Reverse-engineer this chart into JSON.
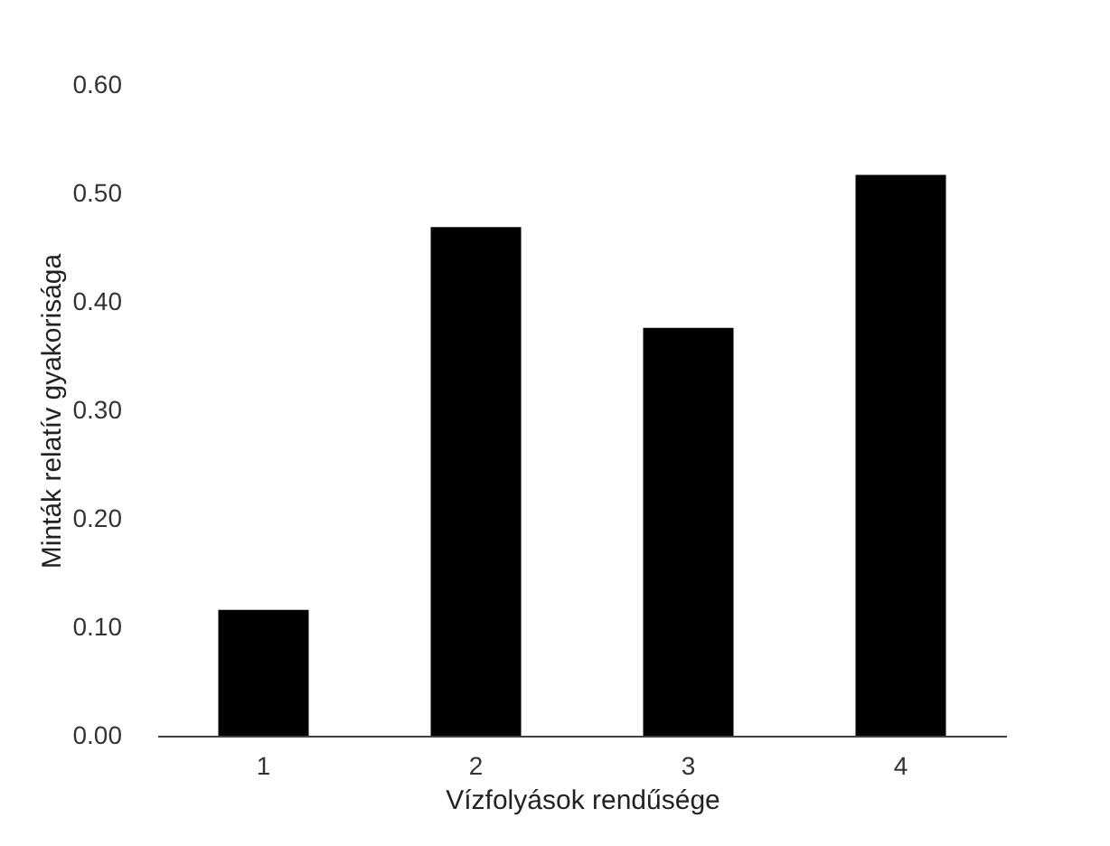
{
  "chart_data": {
    "type": "bar",
    "xlabel": "Vízfolyások rendűsége",
    "ylabel": "Minták relatív gyakorisága",
    "categories": [
      "1",
      "2",
      "3",
      "4"
    ],
    "values": [
      0.116,
      0.469,
      0.376,
      0.517
    ],
    "color": "#000000",
    "ylim": [
      0,
      0.6
    ],
    "yticks": [
      {
        "value": 0,
        "label": "0.00"
      },
      {
        "value": 0.1,
        "label": "0.10"
      },
      {
        "value": 0.2,
        "label": "0.20"
      },
      {
        "value": 0.3,
        "label": "0.30"
      },
      {
        "value": 0.4,
        "label": "0.40"
      },
      {
        "value": 0.5,
        "label": "0.50"
      },
      {
        "value": 0.6,
        "label": "0.60"
      }
    ],
    "grid": false
  }
}
